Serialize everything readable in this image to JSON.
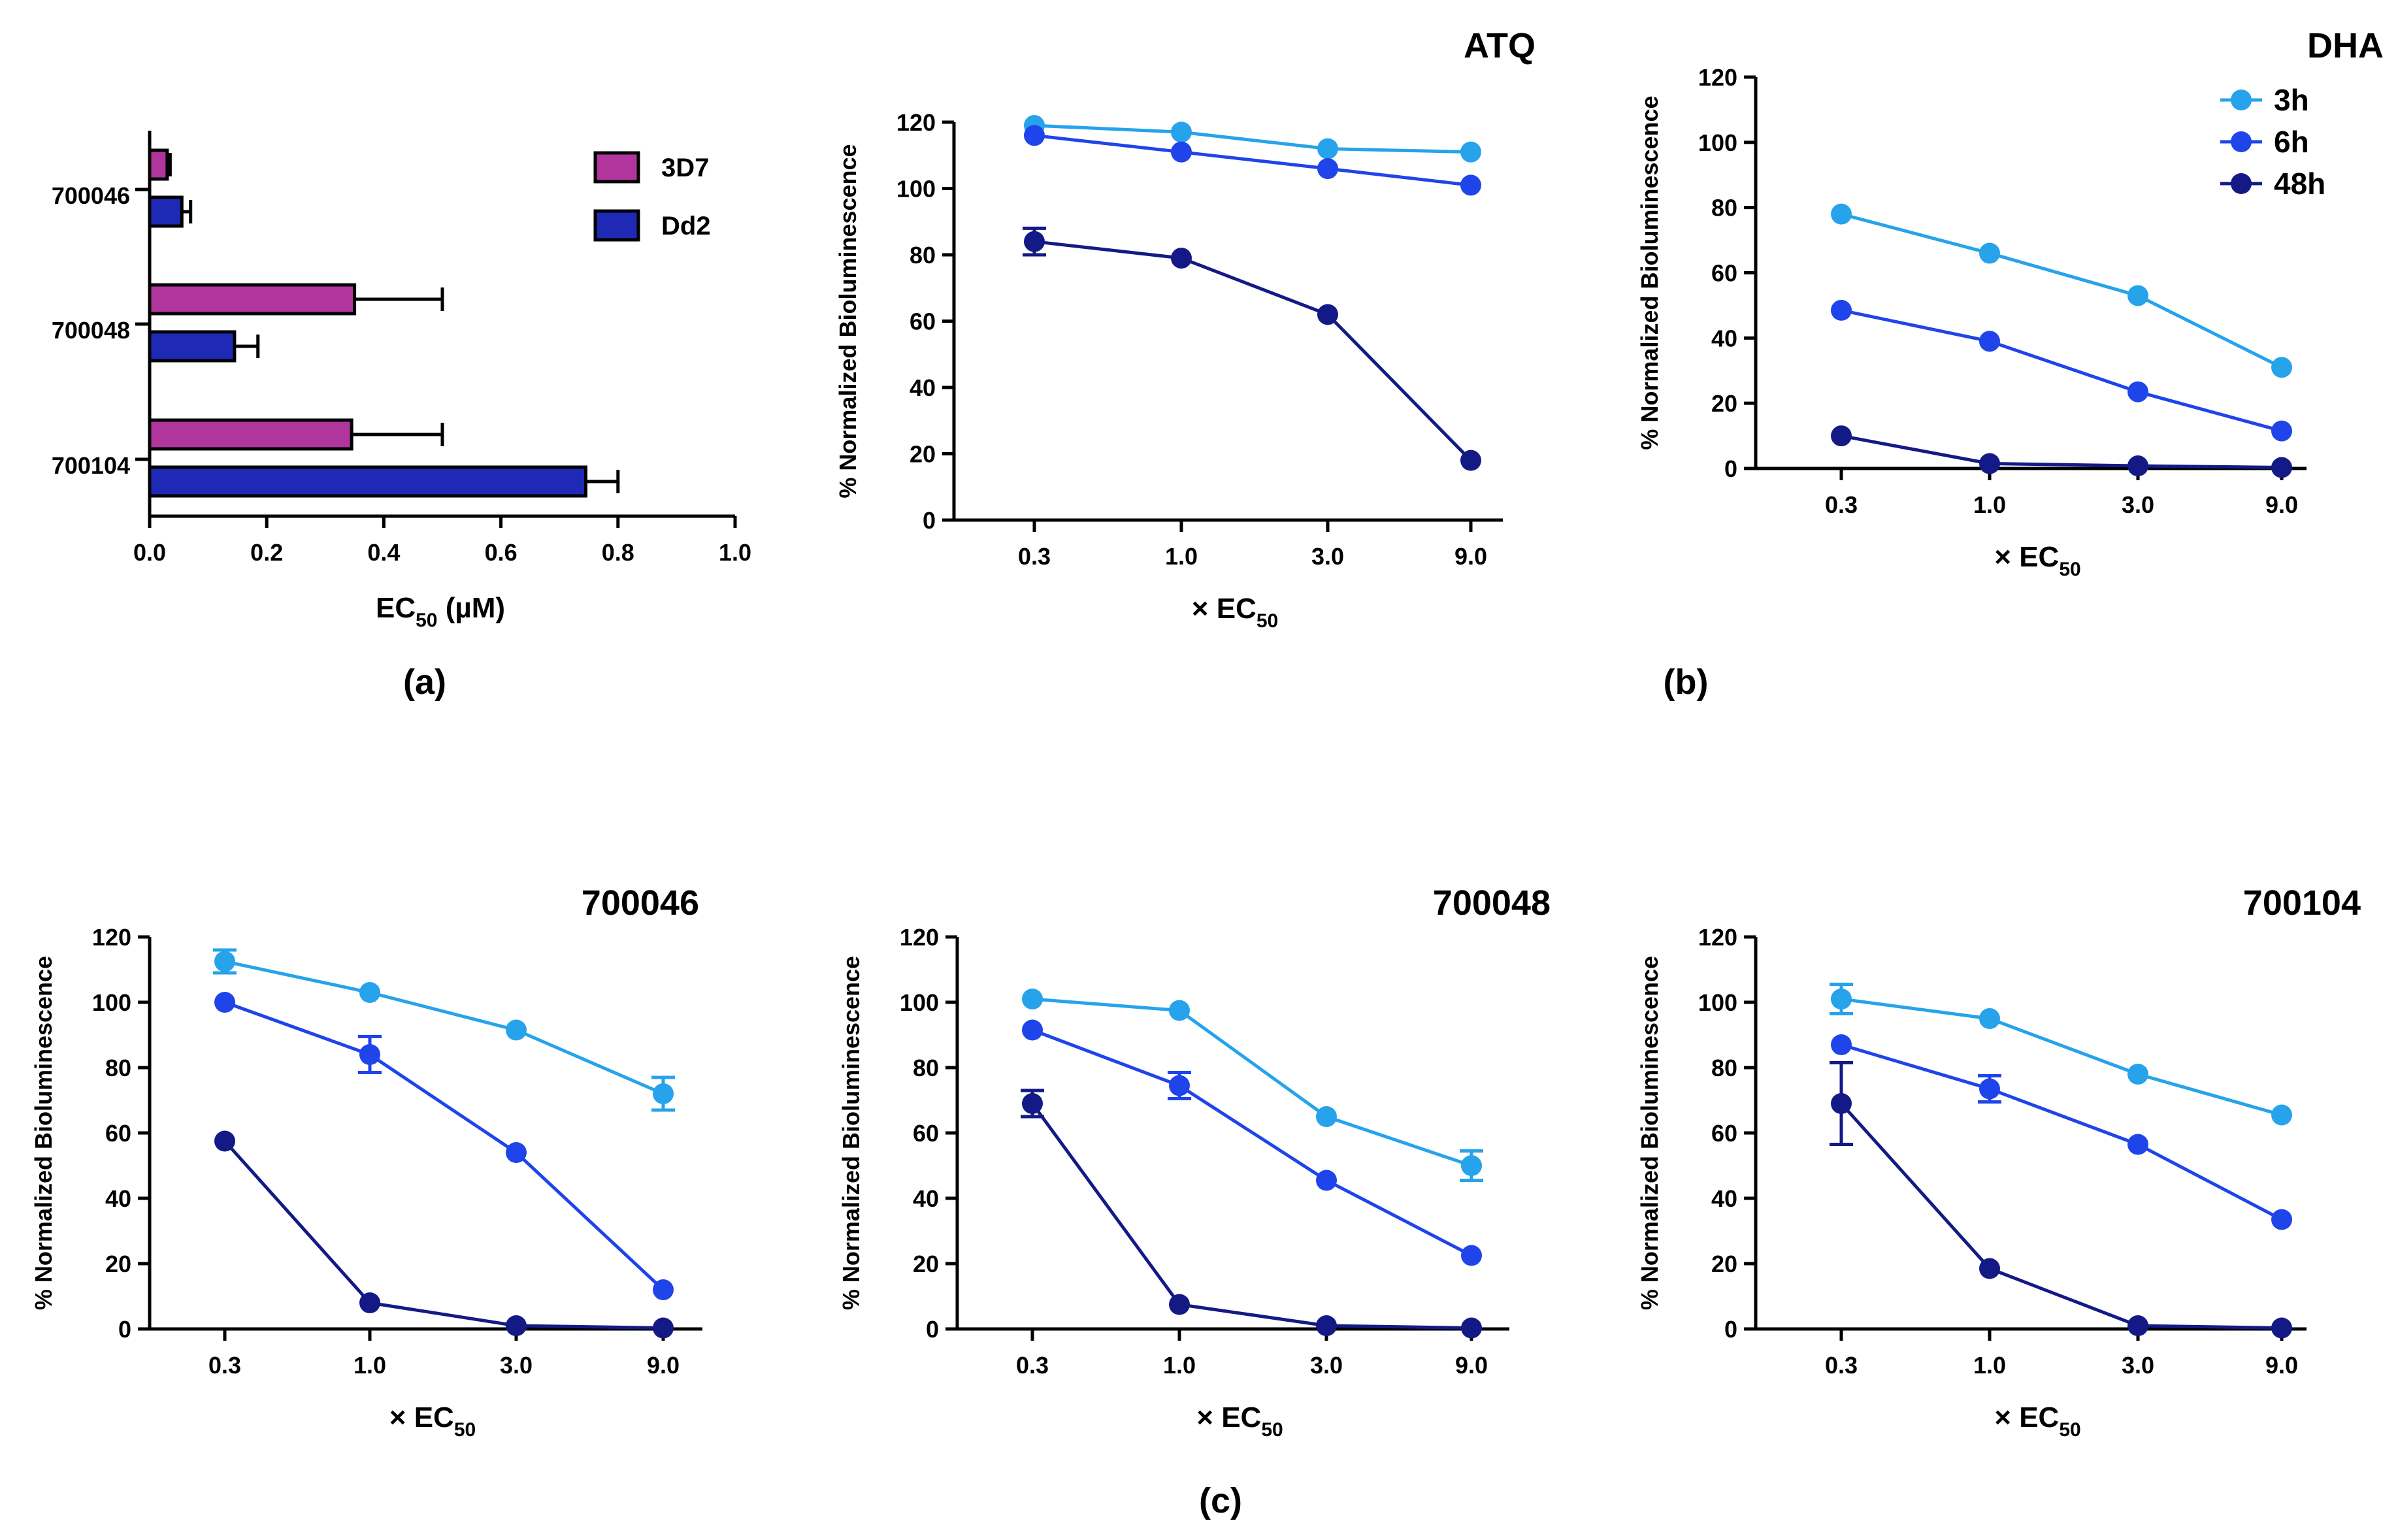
{
  "figure_labels": {
    "a": "(a)",
    "b": "(b)",
    "c": "(c)"
  },
  "colors": {
    "3D7": "#b0359c",
    "Dd2": "#1e2ab5",
    "3h": "#26a3ea",
    "6h": "#1f44ea",
    "48h": "#141a85"
  },
  "chart_data": [
    {
      "id": "a",
      "type": "bar",
      "orientation": "horizontal",
      "categories": [
        "700046",
        "700048",
        "700104"
      ],
      "series": [
        {
          "name": "3D7",
          "values": [
            0.03,
            0.35,
            0.345
          ],
          "errors": [
            0.005,
            0.15,
            0.155
          ]
        },
        {
          "name": "Dd2",
          "values": [
            0.055,
            0.145,
            0.745
          ],
          "errors": [
            0.015,
            0.04,
            0.055
          ]
        }
      ],
      "xlabel": "EC",
      "xlabel_sub": "50",
      "xlabel_unit": " (µM)",
      "xlim": [
        0,
        1.0
      ],
      "xticks": [
        "0.0",
        "0.2",
        "0.4",
        "0.6",
        "0.8",
        "1.0"
      ],
      "legend": [
        "3D7",
        "Dd2"
      ]
    },
    {
      "id": "atq",
      "type": "line",
      "title": "ATQ",
      "categories": [
        "0.3",
        "1.0",
        "3.0",
        "9.0"
      ],
      "series": [
        {
          "name": "3h",
          "values": [
            119,
            117,
            112,
            111
          ],
          "errors": [
            0,
            0,
            0,
            0
          ]
        },
        {
          "name": "6h",
          "values": [
            116,
            111,
            106,
            101
          ],
          "errors": [
            0,
            0,
            0,
            0
          ]
        },
        {
          "name": "48h",
          "values": [
            84,
            79,
            62,
            18
          ],
          "errors": [
            4,
            0,
            0,
            0
          ]
        }
      ],
      "ylabel": "% Normalized Bioluminescence",
      "xlabel": "× EC",
      "xlabel_sub": "50",
      "ylim": [
        0,
        120
      ],
      "yticks": [
        "0",
        "20",
        "40",
        "60",
        "80",
        "100",
        "120"
      ]
    },
    {
      "id": "dha",
      "type": "line",
      "title": "DHA",
      "categories": [
        "0.3",
        "1.0",
        "3.0",
        "9.0"
      ],
      "series": [
        {
          "name": "3h",
          "values": [
            78,
            66,
            53,
            31
          ],
          "errors": [
            0,
            0,
            0,
            0
          ]
        },
        {
          "name": "6h",
          "values": [
            48.5,
            39,
            23.5,
            11.5
          ],
          "errors": [
            0,
            0,
            0,
            0
          ]
        },
        {
          "name": "48h",
          "values": [
            10,
            1.5,
            0.8,
            0.3
          ],
          "errors": [
            0,
            0,
            0,
            0
          ]
        }
      ],
      "ylabel": "% Normalized Bioluminescence",
      "xlabel": "× EC",
      "xlabel_sub": "50",
      "ylim": [
        0,
        120
      ],
      "yticks": [
        "0",
        "20",
        "40",
        "60",
        "80",
        "100",
        "120"
      ],
      "legend": [
        "3h",
        "6h",
        "48h"
      ]
    },
    {
      "id": "700046",
      "type": "line",
      "title": "700046",
      "categories": [
        "0.3",
        "1.0",
        "3.0",
        "9.0"
      ],
      "series": [
        {
          "name": "3h",
          "values": [
            112.5,
            103,
            91.5,
            72
          ],
          "errors": [
            3.5,
            0,
            0,
            5
          ]
        },
        {
          "name": "6h",
          "values": [
            100,
            84,
            54,
            12
          ],
          "errors": [
            0,
            5.5,
            0,
            0
          ]
        },
        {
          "name": "48h",
          "values": [
            57.5,
            8,
            1,
            0.3
          ],
          "errors": [
            0,
            0,
            0,
            0
          ]
        }
      ],
      "ylabel": "% Normalized Bioluminescence",
      "xlabel": "× EC",
      "xlabel_sub": "50",
      "ylim": [
        0,
        120
      ],
      "yticks": [
        "0",
        "20",
        "40",
        "60",
        "80",
        "100",
        "120"
      ]
    },
    {
      "id": "700048",
      "type": "line",
      "title": "700048",
      "categories": [
        "0.3",
        "1.0",
        "3.0",
        "9.0"
      ],
      "series": [
        {
          "name": "3h",
          "values": [
            101,
            97.5,
            65,
            50
          ],
          "errors": [
            0,
            0,
            0,
            4.5
          ]
        },
        {
          "name": "6h",
          "values": [
            91.5,
            74.5,
            45.5,
            22.5
          ],
          "errors": [
            0,
            4,
            0,
            0
          ]
        },
        {
          "name": "48h",
          "values": [
            69,
            7.5,
            1,
            0.3
          ],
          "errors": [
            4,
            0,
            0,
            0
          ]
        }
      ],
      "ylabel": "% Normalized Bioluminescence",
      "xlabel": "× EC",
      "xlabel_sub": "50",
      "ylim": [
        0,
        120
      ],
      "yticks": [
        "0",
        "20",
        "40",
        "60",
        "80",
        "100",
        "120"
      ]
    },
    {
      "id": "700104",
      "type": "line",
      "title": "700104",
      "categories": [
        "0.3",
        "1.0",
        "3.0",
        "9.0"
      ],
      "series": [
        {
          "name": "3h",
          "values": [
            101,
            95,
            78,
            65.5
          ],
          "errors": [
            4.5,
            0,
            0,
            0
          ]
        },
        {
          "name": "6h",
          "values": [
            87,
            73.5,
            56.5,
            33.5
          ],
          "errors": [
            0,
            4,
            0,
            0
          ]
        },
        {
          "name": "48h",
          "values": [
            69,
            18.5,
            1,
            0.3
          ],
          "errors": [
            12.5,
            0,
            0,
            0
          ]
        }
      ],
      "ylabel": "% Normalized Bioluminescence",
      "xlabel": "× EC",
      "xlabel_sub": "50",
      "ylim": [
        0,
        120
      ],
      "yticks": [
        "0",
        "20",
        "40",
        "60",
        "80",
        "100",
        "120"
      ]
    }
  ]
}
